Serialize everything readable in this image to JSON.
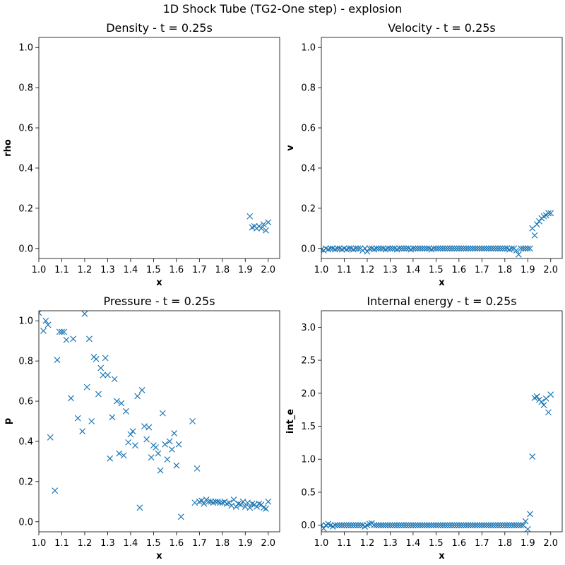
{
  "figure": {
    "suptitle": "1D Shock Tube (TG2-One step) - explosion",
    "marker_color": "#1f77b4"
  },
  "chart_data": [
    {
      "type": "scatter",
      "title": "Density - t = 0.25s",
      "xlabel": "x",
      "ylabel": "rho",
      "xlim": [
        1.0,
        2.05
      ],
      "ylim": [
        -0.05,
        1.05
      ],
      "xticks": [
        "1.0",
        "1.1",
        "1.2",
        "1.3",
        "1.4",
        "1.5",
        "1.6",
        "1.7",
        "1.8",
        "1.9",
        "2.0"
      ],
      "yticks": [
        "0.0",
        "0.2",
        "0.4",
        "0.6",
        "0.8",
        "1.0"
      ],
      "marker": "x",
      "series": [
        {
          "x": [
            1.92,
            1.93,
            1.94,
            1.95,
            1.96,
            1.97,
            1.98,
            1.99,
            2.0
          ],
          "y": [
            0.16,
            0.105,
            0.11,
            0.1,
            0.11,
            0.1,
            0.12,
            0.09,
            0.13
          ]
        }
      ]
    },
    {
      "type": "scatter",
      "title": "Velocity - t = 0.25s",
      "xlabel": "x",
      "ylabel": "v",
      "xlim": [
        1.0,
        2.05
      ],
      "ylim": [
        -0.05,
        1.05
      ],
      "xticks": [
        "1.0",
        "1.1",
        "1.2",
        "1.3",
        "1.4",
        "1.5",
        "1.6",
        "1.7",
        "1.8",
        "1.9",
        "2.0"
      ],
      "yticks": [
        "0.0",
        "0.2",
        "0.4",
        "0.6",
        "0.8",
        "1.0"
      ],
      "marker": "x",
      "series": [
        {
          "x": [
            1.0,
            1.01,
            1.02,
            1.03,
            1.04,
            1.05,
            1.06,
            1.07,
            1.08,
            1.09,
            1.1,
            1.11,
            1.12,
            1.13,
            1.14,
            1.15,
            1.16,
            1.17,
            1.18,
            1.19,
            1.2,
            1.21,
            1.22,
            1.23,
            1.24,
            1.25,
            1.26,
            1.27,
            1.28,
            1.29,
            1.3,
            1.31,
            1.32,
            1.33,
            1.34,
            1.35,
            1.36,
            1.37,
            1.38,
            1.39,
            1.4,
            1.41,
            1.42,
            1.43,
            1.44,
            1.45,
            1.46,
            1.47,
            1.48,
            1.49,
            1.5,
            1.51,
            1.52,
            1.53,
            1.54,
            1.55,
            1.56,
            1.57,
            1.58,
            1.59,
            1.6,
            1.61,
            1.62,
            1.63,
            1.64,
            1.65,
            1.66,
            1.67,
            1.68,
            1.69,
            1.7,
            1.71,
            1.72,
            1.73,
            1.74,
            1.75,
            1.76,
            1.77,
            1.78,
            1.79,
            1.8,
            1.81,
            1.82,
            1.83,
            1.84,
            1.85,
            1.86,
            1.87,
            1.88,
            1.89,
            1.9,
            1.91,
            1.92,
            1.93,
            1.94,
            1.95,
            1.96,
            1.97,
            1.98,
            1.99,
            2.0
          ],
          "y": [
            -0.005,
            -0.01,
            0.0,
            -0.005,
            0.0,
            0.0,
            -0.005,
            0.0,
            0.0,
            -0.005,
            0.0,
            -0.005,
            0.0,
            0.0,
            -0.005,
            0.0,
            0.0,
            0.0,
            -0.01,
            0.0,
            -0.015,
            0.0,
            0.0,
            -0.005,
            0.0,
            0.0,
            0.0,
            0.0,
            -0.005,
            0.0,
            0.0,
            0.0,
            0.0,
            -0.005,
            0.0,
            0.0,
            0.0,
            0.0,
            0.0,
            -0.005,
            0.0,
            0.0,
            0.0,
            0.0,
            0.0,
            0.0,
            0.0,
            0.0,
            -0.005,
            0.0,
            0.0,
            0.0,
            0.0,
            0.0,
            0.0,
            0.0,
            0.0,
            0.0,
            0.0,
            0.0,
            0.0,
            0.0,
            0.0,
            0.0,
            0.0,
            0.0,
            0.0,
            0.0,
            0.0,
            0.0,
            0.0,
            0.0,
            0.0,
            0.0,
            0.0,
            0.0,
            0.0,
            0.0,
            0.0,
            0.0,
            0.0,
            0.0,
            -0.005,
            0.0,
            0.0,
            -0.01,
            -0.03,
            0.0,
            0.0,
            0.0,
            0.0,
            0.0,
            0.1,
            0.065,
            0.12,
            0.135,
            0.15,
            0.16,
            0.165,
            0.175,
            0.175
          ]
        }
      ]
    },
    {
      "type": "scatter",
      "title": "Pressure - t = 0.25s",
      "xlabel": "x",
      "ylabel": "p",
      "xlim": [
        1.0,
        2.05
      ],
      "ylim": [
        -0.05,
        1.05
      ],
      "xticks": [
        "1.0",
        "1.1",
        "1.2",
        "1.3",
        "1.4",
        "1.5",
        "1.6",
        "1.7",
        "1.8",
        "1.9",
        "2.0"
      ],
      "yticks": [
        "0.0",
        "0.2",
        "0.4",
        "0.6",
        "0.8",
        "1.0"
      ],
      "marker": "x",
      "series": [
        {
          "x": [
            1.0,
            1.02,
            1.03,
            1.04,
            1.05,
            1.07,
            1.08,
            1.09,
            1.1,
            1.11,
            1.12,
            1.14,
            1.15,
            1.17,
            1.19,
            1.2,
            1.21,
            1.22,
            1.23,
            1.24,
            1.25,
            1.26,
            1.27,
            1.28,
            1.29,
            1.3,
            1.31,
            1.32,
            1.33,
            1.34,
            1.35,
            1.36,
            1.37,
            1.38,
            1.39,
            1.4,
            1.41,
            1.42,
            1.43,
            1.44,
            1.45,
            1.46,
            1.47,
            1.48,
            1.49,
            1.5,
            1.51,
            1.52,
            1.53,
            1.54,
            1.55,
            1.56,
            1.57,
            1.58,
            1.59,
            1.6,
            1.61,
            1.62,
            1.67,
            1.68,
            1.69,
            1.7,
            1.71,
            1.72,
            1.73,
            1.74,
            1.75,
            1.76,
            1.77,
            1.78,
            1.79,
            1.8,
            1.81,
            1.82,
            1.83,
            1.84,
            1.85,
            1.86,
            1.87,
            1.88,
            1.89,
            1.9,
            1.91,
            1.92,
            1.93,
            1.94,
            1.95,
            1.96,
            1.97,
            1.98,
            1.99,
            2.0
          ],
          "y": [
            1.04,
            0.95,
            1.0,
            0.98,
            0.42,
            0.155,
            0.805,
            0.945,
            0.945,
            0.945,
            0.905,
            0.615,
            0.91,
            0.515,
            0.45,
            1.035,
            0.67,
            0.91,
            0.5,
            0.82,
            0.81,
            0.635,
            0.765,
            0.73,
            0.815,
            0.73,
            0.315,
            0.52,
            0.71,
            0.6,
            0.34,
            0.59,
            0.33,
            0.55,
            0.395,
            0.435,
            0.45,
            0.38,
            0.625,
            0.07,
            0.655,
            0.475,
            0.41,
            0.47,
            0.32,
            0.38,
            0.37,
            0.34,
            0.255,
            0.54,
            0.385,
            0.31,
            0.4,
            0.36,
            0.44,
            0.28,
            0.385,
            0.025,
            0.5,
            0.095,
            0.265,
            0.1,
            0.105,
            0.09,
            0.11,
            0.1,
            0.1,
            0.095,
            0.1,
            0.1,
            0.095,
            0.095,
            0.1,
            0.09,
            0.095,
            0.08,
            0.11,
            0.075,
            0.09,
            0.085,
            0.1,
            0.075,
            0.095,
            0.07,
            0.09,
            0.085,
            0.075,
            0.09,
            0.085,
            0.07,
            0.065,
            0.1
          ]
        }
      ]
    },
    {
      "type": "scatter",
      "title": "Internal energy - t = 0.25s",
      "xlabel": "x",
      "ylabel": "int_e",
      "xlim": [
        1.0,
        2.05
      ],
      "ylim": [
        -0.1,
        3.25
      ],
      "xticks": [
        "1.0",
        "1.1",
        "1.2",
        "1.3",
        "1.4",
        "1.5",
        "1.6",
        "1.7",
        "1.8",
        "1.9",
        "2.0"
      ],
      "yticks": [
        "0.0",
        "0.5",
        "1.0",
        "1.5",
        "2.0",
        "2.5",
        "3.0"
      ],
      "marker": "x",
      "series": [
        {
          "x": [
            1.0,
            1.01,
            1.02,
            1.03,
            1.04,
            1.05,
            1.06,
            1.07,
            1.08,
            1.09,
            1.1,
            1.11,
            1.12,
            1.13,
            1.14,
            1.15,
            1.16,
            1.17,
            1.18,
            1.19,
            1.2,
            1.21,
            1.22,
            1.23,
            1.24,
            1.25,
            1.26,
            1.27,
            1.28,
            1.29,
            1.3,
            1.31,
            1.32,
            1.33,
            1.34,
            1.35,
            1.36,
            1.37,
            1.38,
            1.39,
            1.4,
            1.41,
            1.42,
            1.43,
            1.44,
            1.45,
            1.46,
            1.47,
            1.48,
            1.49,
            1.5,
            1.51,
            1.52,
            1.53,
            1.54,
            1.55,
            1.56,
            1.57,
            1.58,
            1.59,
            1.6,
            1.61,
            1.62,
            1.63,
            1.64,
            1.65,
            1.66,
            1.67,
            1.68,
            1.69,
            1.7,
            1.71,
            1.72,
            1.73,
            1.74,
            1.75,
            1.76,
            1.77,
            1.78,
            1.79,
            1.8,
            1.81,
            1.82,
            1.83,
            1.84,
            1.85,
            1.86,
            1.87,
            1.88,
            1.89,
            1.9,
            1.91,
            1.92,
            1.93,
            1.94,
            1.95,
            1.96,
            1.97,
            1.98,
            1.99,
            2.0
          ],
          "y": [
            0.0,
            -0.05,
            0.0,
            0.02,
            0.0,
            -0.02,
            0.0,
            0.0,
            0.0,
            0.0,
            0.0,
            0.0,
            0.0,
            0.0,
            0.0,
            0.0,
            0.0,
            0.0,
            0.0,
            -0.02,
            0.0,
            0.02,
            0.03,
            0.0,
            0.0,
            0.0,
            0.0,
            0.0,
            0.0,
            0.0,
            0.0,
            0.0,
            0.0,
            0.0,
            0.0,
            0.0,
            0.0,
            0.0,
            0.0,
            0.0,
            0.0,
            0.0,
            0.0,
            0.0,
            0.0,
            0.0,
            0.0,
            0.0,
            0.0,
            0.0,
            0.0,
            0.0,
            0.0,
            0.0,
            0.0,
            0.0,
            0.0,
            0.0,
            0.0,
            0.0,
            0.0,
            0.0,
            0.0,
            0.0,
            0.0,
            0.0,
            0.0,
            0.0,
            0.0,
            0.0,
            0.0,
            0.0,
            0.0,
            0.0,
            0.0,
            0.0,
            0.0,
            0.0,
            0.0,
            0.0,
            0.0,
            0.0,
            0.0,
            0.0,
            0.0,
            0.0,
            0.0,
            0.0,
            0.0,
            0.06,
            -0.06,
            0.17,
            1.04,
            1.93,
            1.95,
            1.9,
            1.87,
            1.82,
            1.92,
            1.71,
            1.98
          ]
        }
      ]
    }
  ]
}
